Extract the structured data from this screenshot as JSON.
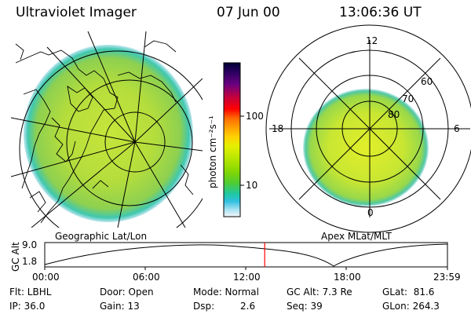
{
  "header": {
    "title": "Ultraviolet Imager",
    "date": "07 Jun 00",
    "time": "13:06:36 UT"
  },
  "left_panel": {
    "label": "Geographic Lat/Lon",
    "map_icon": "earth-map-icon"
  },
  "right_panel": {
    "label": "Apex  MLat/MLT",
    "mlt_labels": {
      "top": "12",
      "left": "18",
      "right": "6",
      "bottom": "0"
    },
    "lat_labels": [
      "60",
      "70",
      "80"
    ]
  },
  "colorbar": {
    "unit_label": "photon cm⁻²s⁻¹",
    "ticks": [
      "100",
      "10"
    ],
    "colors": [
      "#000033",
      "#2a0060",
      "#6a0080",
      "#c00040",
      "#ff0000",
      "#ff6a00",
      "#ffa000",
      "#ffd000",
      "#e6ef00",
      "#b8e600",
      "#88d800",
      "#50cc30",
      "#20c8a0",
      "#30c0e0",
      "#a0e0f0",
      "#e8f4f8"
    ]
  },
  "altitude_strip": {
    "axis_label": "GC Alt",
    "y_ticks": [
      "9.0",
      "1.8"
    ],
    "x_ticks": [
      "00:00",
      "06:00",
      "12:00",
      "18:00",
      "23:59"
    ],
    "current_fraction": 0.5462,
    "marker_color": "#ff0000"
  },
  "info": {
    "filter": "Flt: LBHL",
    "ip": "IP: 36.0",
    "door": "Door: Open",
    "gain": "Gain: 13",
    "mode": "Mode: Normal",
    "dsp_label": "Dsp:",
    "dsp_value": "2.6",
    "gc_alt": "GC Alt: 7.3 Re",
    "seq": "Seq: 39",
    "glat": "GLat:  81.6",
    "glon": "GLon: 264.3"
  }
}
